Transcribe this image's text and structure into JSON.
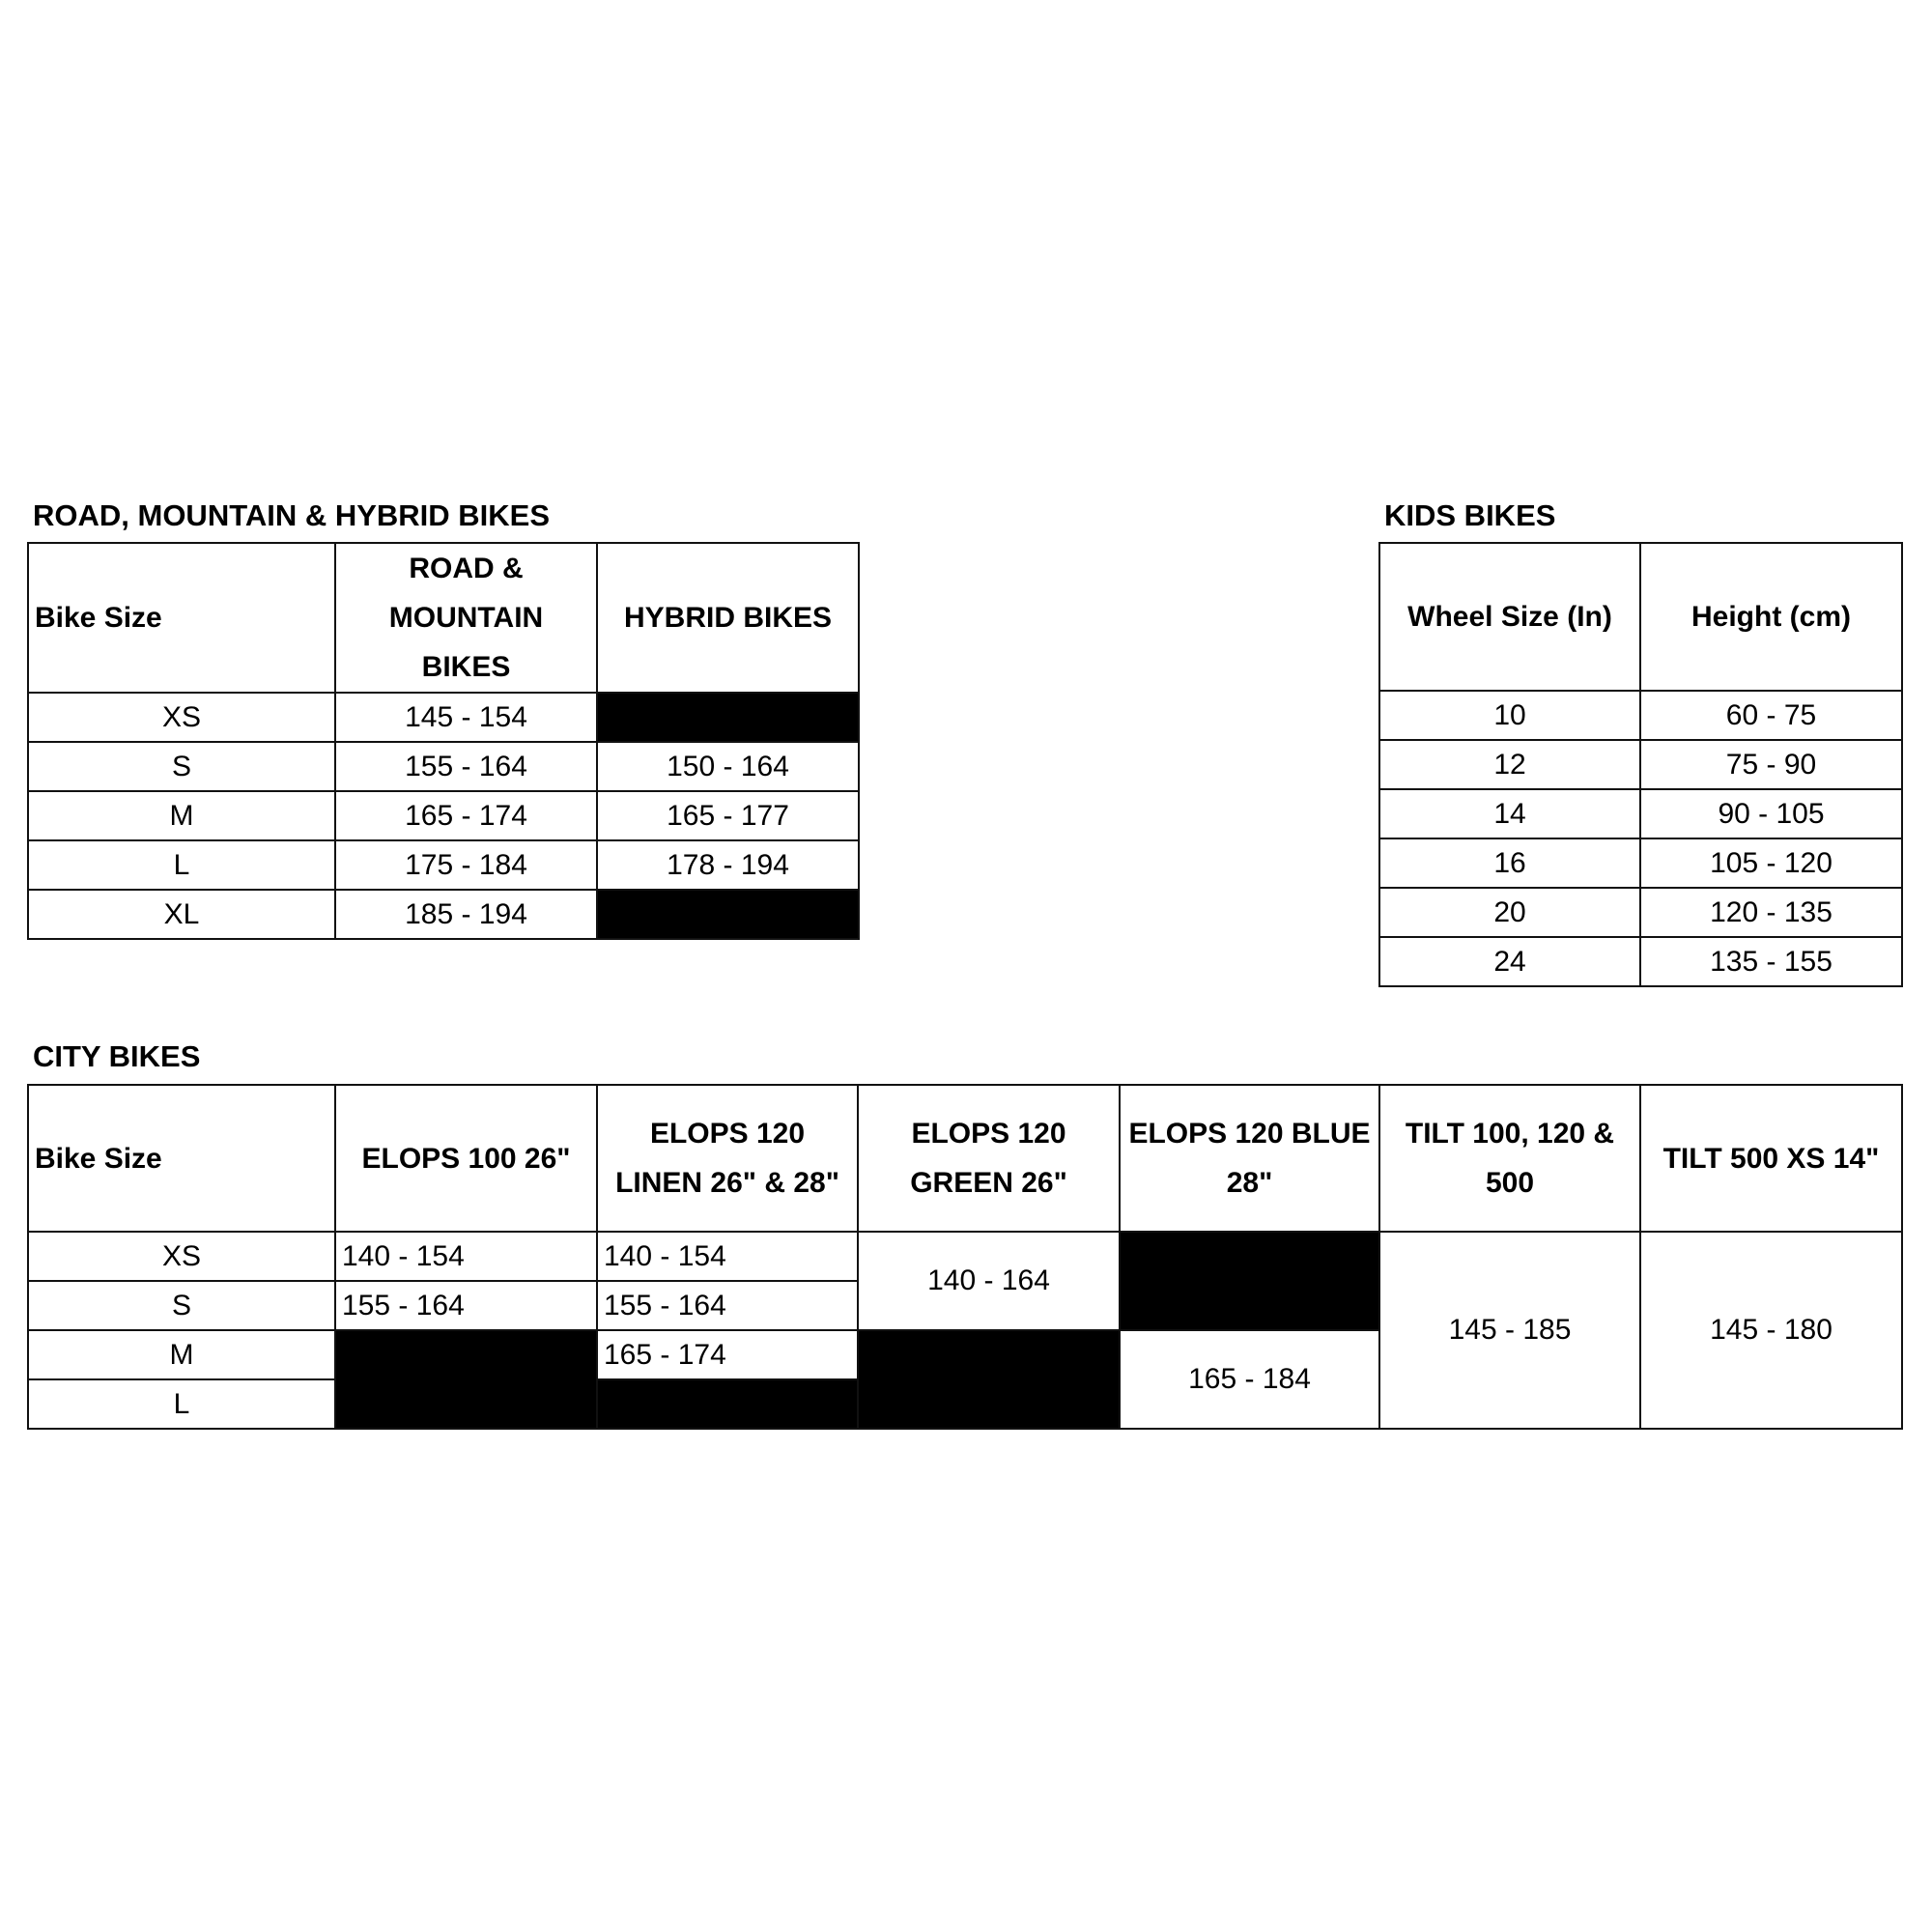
{
  "road": {
    "title": "ROAD, MOUNTAIN & HYBRID BIKES",
    "headers": [
      "Bike Size",
      "ROAD & MOUNTAIN BIKES",
      "HYBRID BIKES"
    ],
    "rows": [
      {
        "size": "XS",
        "road": "145 - 154",
        "hybrid": null
      },
      {
        "size": "S",
        "road": "155 - 164",
        "hybrid": "150 - 164"
      },
      {
        "size": "M",
        "road": "165 - 174",
        "hybrid": "165 - 177"
      },
      {
        "size": "L",
        "road": "175 - 184",
        "hybrid": "178 - 194"
      },
      {
        "size": "XL",
        "road": "185 - 194",
        "hybrid": null
      }
    ]
  },
  "kids": {
    "title": "KIDS BIKES",
    "headers": [
      "Wheel Size (In)",
      "Height (cm)"
    ],
    "rows": [
      {
        "wheel": "10",
        "height": "60 - 75"
      },
      {
        "wheel": "12",
        "height": "75 - 90"
      },
      {
        "wheel": "14",
        "height": "90 - 105"
      },
      {
        "wheel": "16",
        "height": "105 - 120"
      },
      {
        "wheel": "20",
        "height": "120 - 135"
      },
      {
        "wheel": "24",
        "height": "135 - 155"
      }
    ]
  },
  "city": {
    "title": "CITY BIKES",
    "headers": [
      "Bike Size",
      "ELOPS 100 26\"",
      "ELOPS 120 LINEN 26\" & 28\"",
      "ELOPS 120 GREEN 26\"",
      "ELOPS 120 BLUE 28\"",
      "TILT 100, 120 & 500",
      "TILT 500 XS 14\""
    ],
    "sizes": [
      "XS",
      "S",
      "M",
      "L"
    ],
    "elops100": {
      "XS": "140 - 154",
      "S": "155 - 164"
    },
    "elops120_linen": {
      "XS": "140 - 154",
      "S": "155 - 164",
      "M": "165 - 174"
    },
    "elops120_green": {
      "XS_S": "140 - 164"
    },
    "elops120_blue": {
      "M_L": "165 - 184"
    },
    "tilt": {
      "all": "145 - 185"
    },
    "tilt500xs": {
      "all": "145 - 180"
    }
  },
  "colors": {
    "unavailable_cell": "#000000",
    "border": "#111111"
  }
}
